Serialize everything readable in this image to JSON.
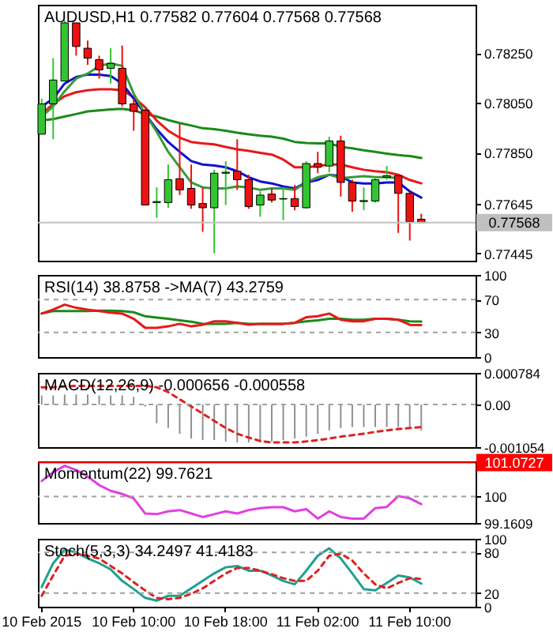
{
  "chart_data": [
    {
      "type": "candlestick",
      "title": "AUDUSD,H1  0.77582 0.77604 0.77568 0.77568",
      "categories": [
        null,
        null,
        null,
        null,
        null,
        null,
        null,
        null,
        null,
        null,
        null,
        null,
        null,
        null,
        null,
        null,
        null,
        null,
        null,
        null,
        null,
        null,
        null,
        null,
        null,
        null,
        null,
        null,
        null,
        null,
        null,
        null,
        null,
        null
      ],
      "ohlc": [
        [
          0.77924,
          0.78067,
          0.77924,
          0.78046
        ],
        [
          0.78046,
          0.7823,
          0.77904,
          0.78142
        ],
        [
          0.78138,
          0.78382,
          0.78138,
          0.78372
        ],
        [
          0.78372,
          0.78372,
          0.7824,
          0.78277
        ],
        [
          0.7827,
          0.78301,
          0.78203,
          0.7823
        ],
        [
          0.78224,
          0.7824,
          0.78148,
          0.78183
        ],
        [
          0.78189,
          0.7827,
          0.78128,
          0.78209
        ],
        [
          0.78189,
          0.78281,
          0.78036,
          0.78046
        ],
        [
          0.78046,
          0.78067,
          0.77938,
          0.78016
        ],
        [
          0.7802,
          0.78026,
          0.77639,
          0.77639
        ],
        [
          0.77649,
          0.7771,
          0.77588,
          0.77653
        ],
        [
          0.77649,
          0.77802,
          0.77628,
          0.77741
        ],
        [
          0.77745,
          0.77965,
          0.77679,
          0.777
        ],
        [
          0.77706,
          0.77802,
          0.77624,
          0.77639
        ],
        [
          0.77645,
          0.7771,
          0.77531,
          0.77628
        ],
        [
          0.77628,
          0.77781,
          0.77445,
          0.77767
        ],
        [
          0.77767,
          0.77816,
          0.77639,
          0.77771
        ],
        [
          0.77775,
          0.77904,
          0.777,
          0.77741
        ],
        [
          0.77741,
          0.77761,
          0.77624,
          0.77633
        ],
        [
          0.77639,
          0.77694,
          0.77592,
          0.77679
        ],
        [
          0.77683,
          0.77706,
          0.77649,
          0.77659
        ],
        [
          0.77663,
          0.7771,
          0.77578,
          0.77665
        ],
        [
          0.77665,
          0.7772,
          0.77618,
          0.77633
        ],
        [
          0.77628,
          0.77816,
          0.77624,
          0.77806
        ],
        [
          0.77806,
          0.77853,
          0.77767,
          0.77791
        ],
        [
          0.77796,
          0.77914,
          0.77771,
          0.77897
        ],
        [
          0.77897,
          0.77918,
          0.77673,
          0.7773
        ],
        [
          0.7773,
          0.77741,
          0.77612,
          0.77655
        ],
        [
          0.77653,
          0.7771,
          0.77618,
          0.77657
        ],
        [
          0.77655,
          0.77751,
          0.77649,
          0.77741
        ],
        [
          0.77751,
          0.77796,
          0.77741,
          0.77757
        ],
        [
          0.77757,
          0.77761,
          0.77527,
          0.77686
        ],
        [
          0.77686,
          0.7769,
          0.77496,
          0.77571
        ],
        [
          0.77582,
          0.77604,
          0.77568,
          0.77568
        ]
      ],
      "series": [
        {
          "type": "line",
          "color": "#1a8a1a",
          "values": [
            0.77979,
            0.77985,
            0.77995,
            0.78005,
            0.78016,
            0.7802,
            0.78024,
            0.78026,
            0.7802,
            0.78005,
            0.77995,
            0.77981,
            0.77969,
            0.77959,
            0.77948,
            0.77944,
            0.77938,
            0.7793,
            0.77924,
            0.77918,
            0.77914,
            0.77906,
            0.77893,
            0.77889,
            0.77887,
            0.77887,
            0.77873,
            0.77867,
            0.77859,
            0.77853,
            0.77846,
            0.7784,
            0.77836,
            0.77828
          ]
        },
        {
          "type": "line",
          "color": "#e81818",
          "values": [
            0.78005,
            0.78046,
            0.78077,
            0.78093,
            0.78101,
            0.78105,
            0.78105,
            0.78101,
            0.78073,
            0.78032,
            0.77979,
            0.77938,
            0.7791,
            0.77893,
            0.77887,
            0.77883,
            0.77873,
            0.77863,
            0.77857,
            0.77849,
            0.77842,
            0.77822,
            0.77791,
            0.77791,
            0.77796,
            0.77802,
            0.77802,
            0.77791,
            0.77781,
            0.77775,
            0.77771,
            0.77761,
            0.7774,
            0.77726
          ]
        },
        {
          "type": "line",
          "color": "#1010d0",
          "values": [
            0.78036,
            0.78067,
            0.78128,
            0.78154,
            0.78164,
            0.78164,
            0.78158,
            0.78128,
            0.78067,
            0.78005,
            0.77944,
            0.77893,
            0.77853,
            0.77816,
            0.77802,
            0.77798,
            0.77791,
            0.77775,
            0.77751,
            0.77734,
            0.77726,
            0.77714,
            0.77706,
            0.7773,
            0.7774,
            0.77761,
            0.77755,
            0.7773,
            0.77726,
            0.77726,
            0.7773,
            0.7773,
            0.77694,
            0.77669
          ]
        },
        {
          "type": "line",
          "color": "#3a9a3a",
          "values": [
            0.77995,
            0.78036,
            0.78097,
            0.78148,
            0.78168,
            0.78199,
            0.78209,
            0.78199,
            0.78087,
            0.78005,
            0.77934,
            0.77853,
            0.77791,
            0.7773,
            0.7771,
            0.77706,
            0.77706,
            0.77714,
            0.7771,
            0.777,
            0.77706,
            0.77706,
            0.777,
            0.7773,
            0.77751,
            0.77761,
            0.77747,
            0.77751,
            0.77755,
            0.77751,
            0.77751,
            0.77747,
            null,
            null
          ]
        }
      ],
      "ylim": [
        0.77415,
        0.78445
      ],
      "yticks": [
        {
          "value": 0.7825,
          "label": "0.78250"
        },
        {
          "value": 0.7805,
          "label": "0.78050"
        },
        {
          "value": 0.7785,
          "label": "0.77850"
        },
        0.77645,
        0.77445
      ],
      "ref_lines": [
        {
          "axis": "y",
          "value": 0.77568,
          "label": "0.77568",
          "color": "#c0c0c0"
        }
      ],
      "tick_labels": "y"
    },
    {
      "type": "line",
      "title": "RSI(14) 38.8758 ->MA(7) 43.2759",
      "categories": [
        null,
        null,
        null,
        null,
        null,
        null,
        null,
        null,
        null,
        null,
        null,
        null,
        null,
        null,
        null,
        null,
        null,
        null,
        null,
        null,
        null,
        null,
        null,
        null,
        null,
        null,
        null,
        null,
        null,
        null,
        null,
        null,
        null,
        null
      ],
      "series": [
        {
          "color": "#1a8a1a",
          "values": [
            53,
            56,
            56,
            56,
            56,
            56.5,
            56.5,
            56,
            54.6,
            49.7,
            48,
            46.6,
            44.8,
            43,
            40.5,
            40.5,
            40.5,
            41.7,
            40.5,
            40.5,
            40.5,
            40.5,
            41.7,
            43.6,
            44.8,
            46.6,
            46.6,
            45.4,
            45.4,
            46.6,
            46.6,
            45.4,
            43.6,
            43.3
          ]
        },
        {
          "color": "#e81818",
          "values": [
            53,
            57.7,
            63.8,
            60,
            57.7,
            56,
            54,
            53,
            46.6,
            35.6,
            35.6,
            37.4,
            40.5,
            37.4,
            39.3,
            43.6,
            43.6,
            41.7,
            39.3,
            40.5,
            40.5,
            40.5,
            41.7,
            48.5,
            49.7,
            53,
            45.4,
            43.6,
            43.6,
            46.6,
            46.6,
            45.4,
            39.3,
            38.9
          ]
        }
      ],
      "ylim": [
        0,
        100
      ],
      "yticks": [
        100,
        70,
        30,
        0
      ],
      "ref_lines": [
        {
          "axis": "y",
          "value": 70,
          "line_style": "dashed",
          "color": "#a0a0a0"
        },
        {
          "axis": "y",
          "value": 30,
          "line_style": "dashed",
          "color": "#a0a0a0"
        }
      ],
      "tick_labels": "y"
    },
    {
      "type": "bar",
      "title": "MACD(12,26,9) -0.000656 -0.000558",
      "categories": [
        null,
        null,
        null,
        null,
        null,
        null,
        null,
        null,
        null,
        null,
        null,
        null,
        null,
        null,
        null,
        null,
        null,
        null,
        null,
        null,
        null,
        null,
        null,
        null,
        null,
        null,
        null,
        null,
        null,
        null,
        null,
        null,
        null,
        null
      ],
      "series": [
        {
          "type": "bar",
          "color": "#909090",
          "values": [
            0.000225,
            0.000225,
            0.000249,
            0.000249,
            0.000249,
            0.000225,
            0.000225,
            0.000225,
            0.00019,
            -5e-05,
            -0.000463,
            -0.000581,
            -0.000723,
            -0.000842,
            -0.000878,
            -0.000878,
            -0.000913,
            -0.000937,
            -0.000937,
            -0.000937,
            -0.000913,
            -0.000878,
            -0.000842,
            -0.000795,
            -0.000723,
            -0.00064,
            -0.000581,
            -0.000557,
            -0.000557,
            -0.000557,
            -0.000557,
            -0.000557,
            -0.000557,
            -0.00064
          ]
        },
        {
          "type": "line",
          "color": "#e02020",
          "line_style": "dashed",
          "values": [
            0.000427,
            0.000427,
            0.000451,
            0.000463,
            0.000463,
            0.000463,
            0.000463,
            0.000463,
            0.000463,
            0.000463,
            0.000427,
            0.000308,
            0.00013,
            -4.7e-05,
            -0.000225,
            -0.000403,
            -0.000581,
            -0.000723,
            -0.000818,
            -0.000901,
            -0.000937,
            -0.000937,
            -0.000937,
            -0.000913,
            -0.000878,
            -0.000842,
            -0.000795,
            -0.000759,
            -0.000723,
            -0.000676,
            -0.00064,
            -0.000605,
            -0.000581,
            -0.000557
          ]
        }
      ],
      "ylim": [
        -0.001054,
        0.000784
      ],
      "yticks": [
        0.000784,
        {
          "value": 0,
          "label": "0.00"
        },
        -0.001054
      ],
      "ref_lines": [
        {
          "axis": "y",
          "value": 0,
          "line_style": "dashed",
          "color": "#a0a0a0"
        }
      ],
      "tick_labels": "y"
    },
    {
      "type": "line",
      "title": "Momentum(22) 99.7621",
      "categories": [
        null,
        null,
        null,
        null,
        null,
        null,
        null,
        null,
        null,
        null,
        null,
        null,
        null,
        null,
        null,
        null,
        null,
        null,
        null,
        null,
        null,
        null,
        null,
        null,
        null,
        null,
        null,
        null,
        null,
        null,
        null,
        null,
        null,
        null
      ],
      "series": [
        {
          "color": "#e040e0",
          "values": [
            100.49,
            100.77,
            100.97,
            100.84,
            100.63,
            100.36,
            100.18,
            100.08,
            99.94,
            99.46,
            99.44,
            99.53,
            99.57,
            99.46,
            99.35,
            99.44,
            99.53,
            99.46,
            99.57,
            99.63,
            99.66,
            99.66,
            99.53,
            99.6,
            99.3,
            99.53,
            99.35,
            99.3,
            99.3,
            99.63,
            99.67,
            100.01,
            99.94,
            99.76
          ]
        }
      ],
      "ylim": [
        99.1609,
        101.1107
      ],
      "yticks": [
        {
          "value": 101.1107,
          "label": null
        },
        100,
        99.1609
      ],
      "ref_lines": [
        {
          "axis": "y",
          "value": 100,
          "line_style": "dashed",
          "color": "#a0a0a0"
        },
        {
          "axis": "y",
          "value": 101.0727,
          "label": "101.0727",
          "color": "#ff0000"
        }
      ],
      "tick_labels": "y"
    },
    {
      "type": "line",
      "title": "Stoch(5,3,3) 34.2497 41.4183",
      "categories": [
        "10 Feb 2015",
        null,
        null,
        null,
        null,
        null,
        null,
        null,
        "10 Feb 10:00",
        null,
        null,
        null,
        null,
        null,
        null,
        null,
        "10 Feb 18:00",
        null,
        null,
        null,
        null,
        null,
        null,
        null,
        "11 Feb 02:00",
        null,
        null,
        null,
        null,
        null,
        null,
        null,
        "11 Feb 10:00",
        null
      ],
      "series": [
        {
          "color": "#20a090",
          "values": [
            29,
            64,
            84,
            80,
            71,
            64,
            55,
            38,
            26,
            13,
            9,
            16,
            16,
            27,
            38,
            49,
            58,
            60,
            53,
            53,
            46,
            38,
            33,
            53,
            75,
            86,
            71,
            49,
            26,
            24,
            35,
            46,
            43,
            34
          ]
        },
        {
          "color": "#e02020",
          "line_style": "dashed",
          "values": [
            16,
            46,
            75,
            78,
            75,
            71,
            60,
            49,
            36,
            24,
            13,
            11,
            13,
            19,
            27,
            38,
            49,
            57,
            57,
            53,
            48,
            42,
            38,
            38,
            53,
            75,
            78,
            68,
            49,
            33,
            27,
            35,
            42,
            41
          ]
        }
      ],
      "ylim": [
        0,
        100
      ],
      "yticks": [
        100,
        80,
        20,
        0
      ],
      "ref_lines": [
        {
          "axis": "y",
          "value": 80,
          "line_style": "dashed",
          "color": "#a0a0a0"
        },
        {
          "axis": "y",
          "value": 20,
          "line_style": "dashed",
          "color": "#a0a0a0"
        }
      ]
    }
  ]
}
